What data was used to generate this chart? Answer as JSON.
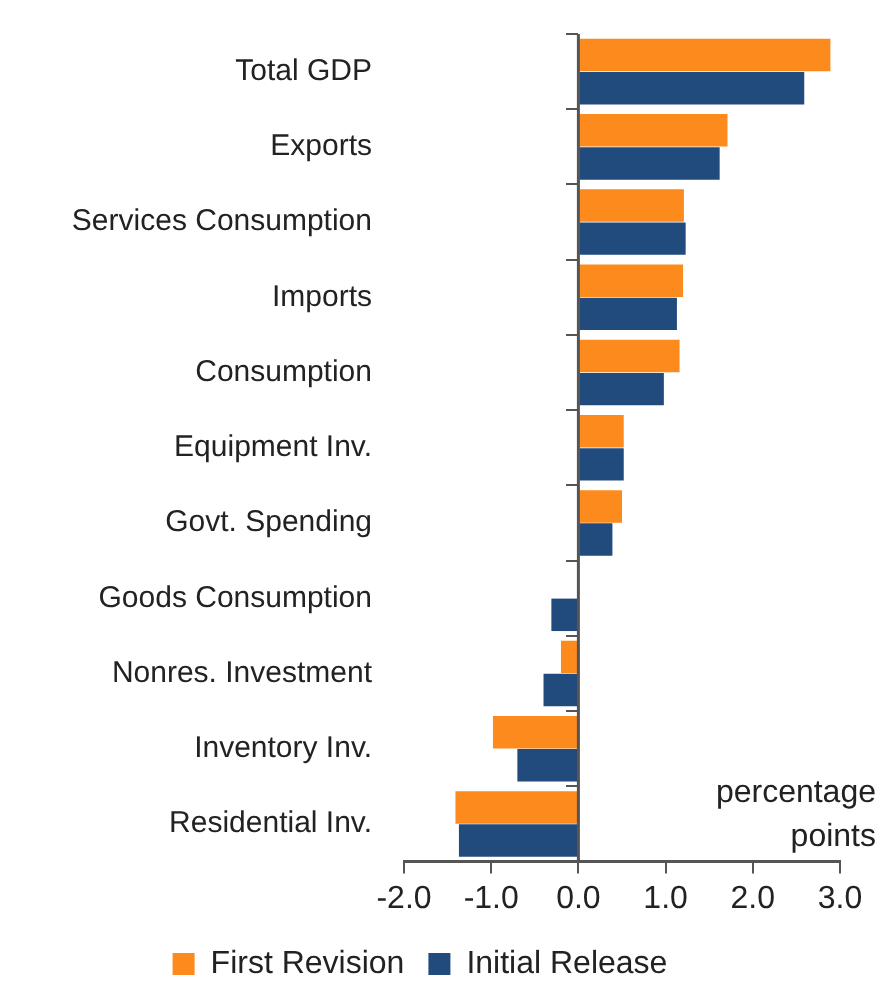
{
  "chart_data": {
    "type": "bar",
    "orientation": "horizontal",
    "categories": [
      "Total GDP",
      "Exports",
      "Services Consumption",
      "Imports",
      "Consumption",
      "Equipment Inv.",
      "Govt. Spending",
      "Goods Consumption",
      "Nonres. Investment",
      "Inventory Inv.",
      "Residential Inv."
    ],
    "series": [
      {
        "name": "First Revision",
        "color": "#fc8a1c",
        "values": [
          2.89,
          1.71,
          1.21,
          1.2,
          1.16,
          0.52,
          0.5,
          0,
          -0.2,
          -0.98,
          -1.41
        ]
      },
      {
        "name": "Initial Release",
        "color": "#224b7d",
        "values": [
          2.59,
          1.62,
          1.23,
          1.13,
          0.98,
          0.52,
          0.39,
          -0.31,
          -0.4,
          -0.7,
          -1.37
        ]
      }
    ],
    "xlim": [
      -2,
      3
    ],
    "xticks": [
      {
        "value": -2,
        "label": "-2.0"
      },
      {
        "value": -1,
        "label": "-1.0"
      },
      {
        "value": 0,
        "label": "0.0"
      },
      {
        "value": 1,
        "label": "1.0"
      },
      {
        "value": 2,
        "label": "2.0"
      },
      {
        "value": 3,
        "label": "3.0"
      }
    ],
    "grid": false,
    "legend": "bottom",
    "ref_lines": [
      {
        "axis": "x",
        "value": 0,
        "color": "#555555"
      }
    ],
    "annotations": [
      "percentage points"
    ]
  }
}
